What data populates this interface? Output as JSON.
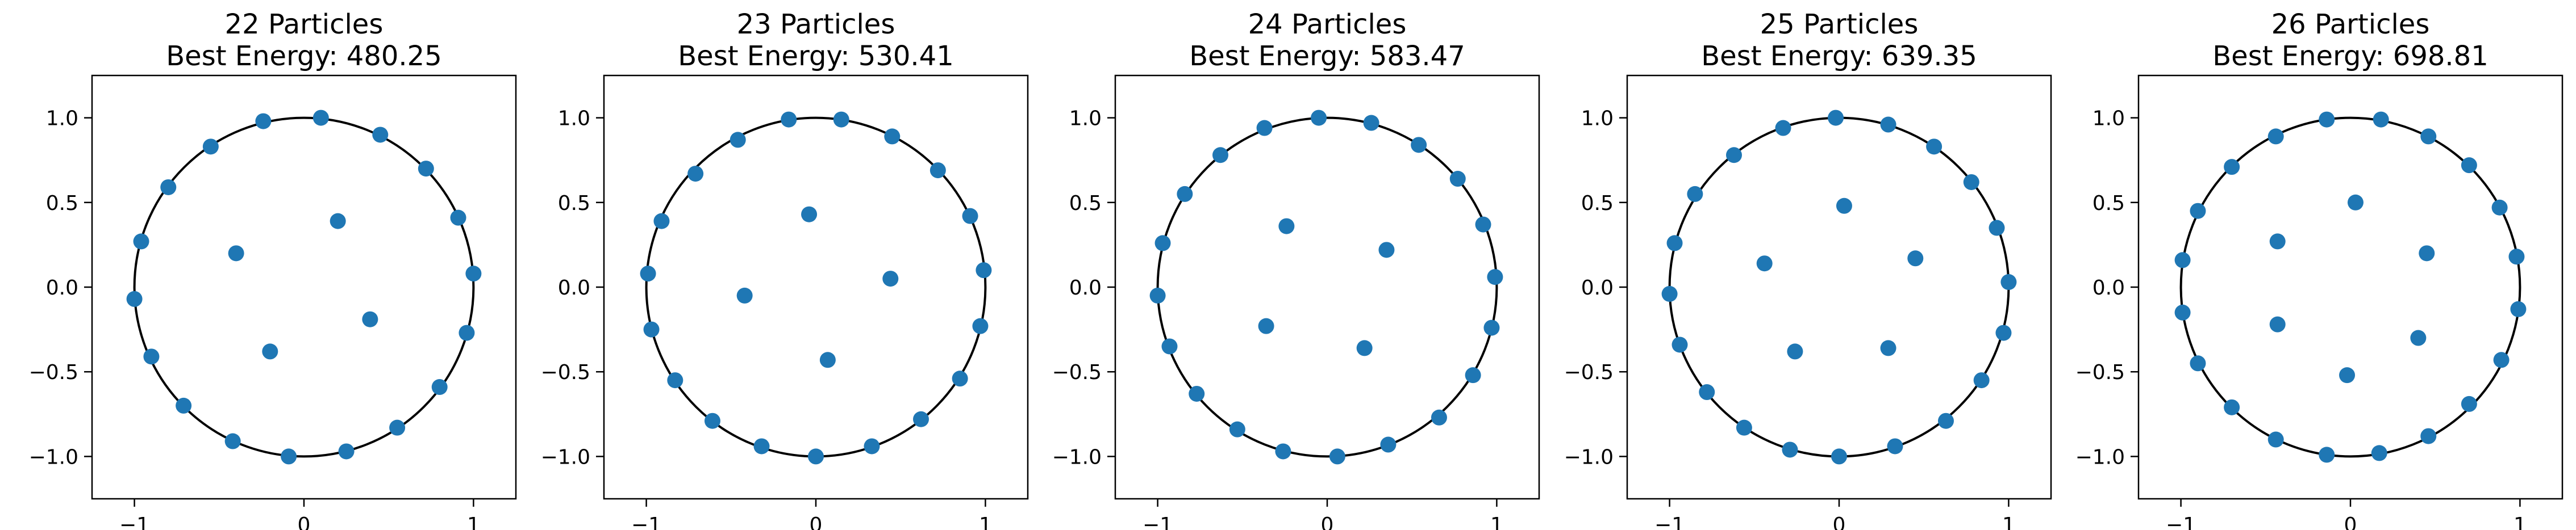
{
  "colors": {
    "marker": "#1f77b4",
    "circle": "#000000",
    "frame": "#000000",
    "background": "#ffffff"
  },
  "charts": [
    {
      "title_line1": "22 Particles",
      "title_line2": "Best Energy: 480.25",
      "chart_data": {
        "type": "scatter",
        "xlim": [
          -1.25,
          1.25
        ],
        "ylim": [
          -1.25,
          1.25
        ],
        "xticks": [
          "-1",
          "0",
          "1"
        ],
        "yticks": [
          "1.0",
          "0.5",
          "0.0",
          "-0.5",
          "-1.0"
        ],
        "unit_circle": true,
        "points": [
          [
            0.1,
            1.0
          ],
          [
            0.45,
            0.9
          ],
          [
            0.72,
            0.7
          ],
          [
            0.91,
            0.41
          ],
          [
            1.0,
            0.08
          ],
          [
            0.96,
            -0.27
          ],
          [
            0.8,
            -0.59
          ],
          [
            0.55,
            -0.83
          ],
          [
            0.25,
            -0.97
          ],
          [
            -0.09,
            -1.0
          ],
          [
            -0.42,
            -0.91
          ],
          [
            -0.71,
            -0.7
          ],
          [
            -0.9,
            -0.41
          ],
          [
            -1.0,
            -0.07
          ],
          [
            -0.96,
            0.27
          ],
          [
            -0.8,
            0.59
          ],
          [
            -0.55,
            0.83
          ],
          [
            -0.24,
            0.98
          ],
          [
            0.2,
            0.39
          ],
          [
            -0.4,
            0.2
          ],
          [
            0.39,
            -0.19
          ],
          [
            -0.2,
            -0.38
          ]
        ]
      }
    },
    {
      "title_line1": "23 Particles",
      "title_line2": "Best Energy: 530.41",
      "chart_data": {
        "type": "scatter",
        "xlim": [
          -1.25,
          1.25
        ],
        "ylim": [
          -1.25,
          1.25
        ],
        "xticks": [
          "-1",
          "0",
          "1"
        ],
        "yticks": [
          "1.0",
          "0.5",
          "0.0",
          "-0.5",
          "-1.0"
        ],
        "unit_circle": true,
        "points": [
          [
            0.15,
            0.99
          ],
          [
            0.45,
            0.89
          ],
          [
            0.72,
            0.69
          ],
          [
            0.91,
            0.42
          ],
          [
            0.99,
            0.1
          ],
          [
            0.97,
            -0.23
          ],
          [
            0.85,
            -0.54
          ],
          [
            0.62,
            -0.78
          ],
          [
            0.33,
            -0.94
          ],
          [
            0.0,
            -1.0
          ],
          [
            -0.32,
            -0.94
          ],
          [
            -0.61,
            -0.79
          ],
          [
            -0.83,
            -0.55
          ],
          [
            -0.97,
            -0.25
          ],
          [
            -0.99,
            0.08
          ],
          [
            -0.91,
            0.39
          ],
          [
            -0.71,
            0.67
          ],
          [
            -0.46,
            0.87
          ],
          [
            -0.16,
            0.99
          ],
          [
            -0.04,
            0.43
          ],
          [
            0.44,
            0.05
          ],
          [
            -0.42,
            -0.05
          ],
          [
            0.07,
            -0.43
          ]
        ]
      }
    },
    {
      "title_line1": "24 Particles",
      "title_line2": "Best Energy: 583.47",
      "chart_data": {
        "type": "scatter",
        "xlim": [
          -1.25,
          1.25
        ],
        "ylim": [
          -1.25,
          1.25
        ],
        "xticks": [
          "-1",
          "0",
          "1"
        ],
        "yticks": [
          "1.0",
          "0.5",
          "0.0",
          "-0.5",
          "-1.0"
        ],
        "unit_circle": true,
        "points": [
          [
            -0.05,
            1.0
          ],
          [
            0.26,
            0.97
          ],
          [
            0.54,
            0.84
          ],
          [
            0.77,
            0.64
          ],
          [
            0.92,
            0.37
          ],
          [
            0.99,
            0.06
          ],
          [
            0.97,
            -0.24
          ],
          [
            0.86,
            -0.52
          ],
          [
            0.66,
            -0.77
          ],
          [
            0.36,
            -0.93
          ],
          [
            0.06,
            -1.0
          ],
          [
            -0.26,
            -0.97
          ],
          [
            -0.53,
            -0.84
          ],
          [
            -0.77,
            -0.63
          ],
          [
            -0.93,
            -0.35
          ],
          [
            -1.0,
            -0.05
          ],
          [
            -0.97,
            0.26
          ],
          [
            -0.84,
            0.55
          ],
          [
            -0.63,
            0.78
          ],
          [
            -0.37,
            0.94
          ],
          [
            -0.24,
            0.36
          ],
          [
            0.35,
            0.22
          ],
          [
            -0.36,
            -0.23
          ],
          [
            0.22,
            -0.36
          ]
        ]
      }
    },
    {
      "title_line1": "25 Particles",
      "title_line2": "Best Energy: 639.35",
      "chart_data": {
        "type": "scatter",
        "xlim": [
          -1.25,
          1.25
        ],
        "ylim": [
          -1.25,
          1.25
        ],
        "xticks": [
          "-1",
          "0",
          "1"
        ],
        "yticks": [
          "1.0",
          "0.5",
          "0.0",
          "-0.5",
          "-1.0"
        ],
        "unit_circle": true,
        "points": [
          [
            -0.02,
            1.0
          ],
          [
            0.29,
            0.96
          ],
          [
            0.56,
            0.83
          ],
          [
            0.78,
            0.62
          ],
          [
            0.93,
            0.35
          ],
          [
            1.0,
            0.03
          ],
          [
            0.97,
            -0.27
          ],
          [
            0.84,
            -0.55
          ],
          [
            0.63,
            -0.79
          ],
          [
            0.33,
            -0.94
          ],
          [
            0.0,
            -1.0
          ],
          [
            -0.29,
            -0.96
          ],
          [
            -0.56,
            -0.83
          ],
          [
            -0.78,
            -0.62
          ],
          [
            -0.94,
            -0.34
          ],
          [
            -1.0,
            -0.04
          ],
          [
            -0.97,
            0.26
          ],
          [
            -0.85,
            0.55
          ],
          [
            -0.62,
            0.78
          ],
          [
            -0.33,
            0.94
          ],
          [
            0.03,
            0.48
          ],
          [
            0.45,
            0.17
          ],
          [
            -0.44,
            0.14
          ],
          [
            -0.26,
            -0.38
          ],
          [
            0.29,
            -0.36
          ]
        ]
      }
    },
    {
      "title_line1": "26 Particles",
      "title_line2": "Best Energy: 698.81",
      "chart_data": {
        "type": "scatter",
        "xlim": [
          -1.25,
          1.25
        ],
        "ylim": [
          -1.25,
          1.25
        ],
        "xticks": [
          "-1",
          "0",
          "1"
        ],
        "yticks": [
          "1.0",
          "0.5",
          "0.0",
          "-0.5",
          "-1.0"
        ],
        "unit_circle": true,
        "points": [
          [
            0.18,
            0.99
          ],
          [
            0.46,
            0.89
          ],
          [
            0.7,
            0.72
          ],
          [
            0.88,
            0.47
          ],
          [
            0.98,
            0.18
          ],
          [
            0.99,
            -0.13
          ],
          [
            0.89,
            -0.43
          ],
          [
            0.7,
            -0.69
          ],
          [
            0.46,
            -0.88
          ],
          [
            0.17,
            -0.98
          ],
          [
            -0.14,
            -0.99
          ],
          [
            -0.44,
            -0.9
          ],
          [
            -0.7,
            -0.71
          ],
          [
            -0.9,
            -0.45
          ],
          [
            -0.99,
            -0.15
          ],
          [
            -0.99,
            0.16
          ],
          [
            -0.9,
            0.45
          ],
          [
            -0.7,
            0.71
          ],
          [
            -0.44,
            0.89
          ],
          [
            -0.14,
            0.99
          ],
          [
            0.03,
            0.5
          ],
          [
            0.45,
            0.2
          ],
          [
            -0.43,
            0.27
          ],
          [
            -0.43,
            -0.22
          ],
          [
            0.4,
            -0.3
          ],
          [
            -0.02,
            -0.52
          ]
        ]
      }
    }
  ]
}
